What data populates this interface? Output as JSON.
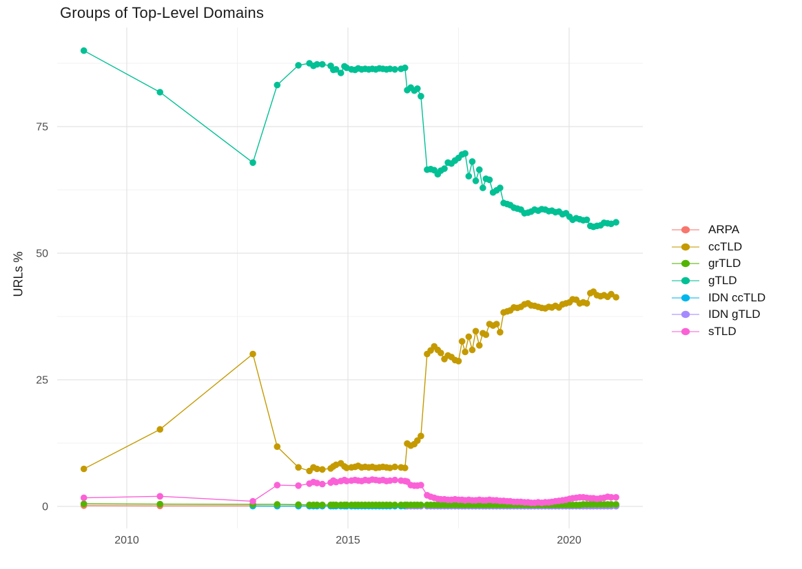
{
  "chart": {
    "title": "Groups of Top-Level Domains",
    "y_axis": {
      "title": "URLs %",
      "ticks": [
        0,
        25,
        50,
        75
      ],
      "minor_ticks": [
        12.5,
        37.5,
        62.5,
        87.5
      ],
      "range": [
        -4.5,
        94.5
      ]
    },
    "x_axis": {
      "title": "",
      "ticks": [
        2010,
        2015,
        2020
      ],
      "minor_ticks": [
        2012.5,
        2017.5
      ],
      "range": [
        2008.43,
        2021.67
      ]
    }
  },
  "chart_data": {
    "type": "line",
    "title": "Groups of Top-Level Domains",
    "xlabel": "",
    "ylabel": "URLs %",
    "grid": true,
    "legend_position": "right",
    "x_tick_labels": [
      "2010",
      "2015",
      "2020"
    ],
    "y_tick_labels": [
      "0",
      "25",
      "50",
      "75"
    ],
    "x": [
      2009.03,
      2010.75,
      2012.85,
      2013.4,
      2013.88,
      2014.13,
      2014.22,
      2014.3,
      2014.42,
      2014.61,
      2014.67,
      2014.73,
      2014.84,
      2014.92,
      2014.97,
      2015.08,
      2015.16,
      2015.23,
      2015.31,
      2015.39,
      2015.47,
      2015.55,
      2015.63,
      2015.71,
      2015.79,
      2015.87,
      2015.95,
      2016.06,
      2016.2,
      2016.29,
      2016.34,
      2016.42,
      2016.5,
      2016.57,
      2016.65,
      2016.79,
      2016.87,
      2016.95,
      2017.03,
      2017.1,
      2017.18,
      2017.26,
      2017.34,
      2017.42,
      2017.5,
      2017.58,
      2017.65,
      2017.73,
      2017.81,
      2017.89,
      2017.97,
      2018.05,
      2018.12,
      2018.2,
      2018.28,
      2018.36,
      2018.44,
      2018.52,
      2018.6,
      2018.67,
      2018.75,
      2018.83,
      2018.91,
      2018.99,
      2019.07,
      2019.14,
      2019.22,
      2019.3,
      2019.38,
      2019.46,
      2019.54,
      2019.61,
      2019.69,
      2019.77,
      2019.85,
      2019.93,
      2020.01,
      2020.08,
      2020.16,
      2020.24,
      2020.32,
      2020.4,
      2020.48,
      2020.55,
      2020.63,
      2020.71,
      2020.79,
      2020.87,
      2020.95,
      2021.06
    ],
    "series": [
      {
        "name": "ARPA",
        "color": "#F8766D",
        "values": [
          0.15,
          0.1,
          0.1,
          0.05,
          0.05,
          0.05,
          0.05,
          0.05,
          0.05,
          0.05,
          0.05,
          0.05,
          0.05,
          0.05,
          0.05,
          0.05,
          0.05,
          0.05,
          0.05,
          0.05,
          0.05,
          0.05,
          0.05,
          0.05,
          0.05,
          0.05,
          0.05,
          0.05,
          0.05,
          0.05,
          0.05,
          0.05,
          0.05,
          0.05,
          0.05,
          0.05,
          0.05,
          0.05,
          0.05,
          0.05,
          0.05,
          0.05,
          0.05,
          0.05,
          0.05,
          0.05,
          0.05,
          0.05,
          0.05,
          0.05,
          0.05,
          0.05,
          0.05,
          0.05,
          0.05,
          0.05,
          0.05,
          0.05,
          0.05,
          0.05,
          0.05,
          0.05,
          0.05,
          0.05,
          0.05,
          0.05,
          0.05,
          0.05,
          0.05,
          0.05,
          0.05,
          0.05,
          0.05,
          0.05,
          0.05,
          0.05,
          0.05,
          0.05,
          0.05,
          0.05,
          0.05,
          0.05,
          0.05,
          0.05,
          0.05,
          0.05,
          0.05,
          0.05,
          0.05,
          0.05
        ]
      },
      {
        "name": "ccTLD",
        "color": "#C49A00",
        "values": [
          7.4,
          15.2,
          30.1,
          11.8,
          7.7,
          7.0,
          7.7,
          7.4,
          7.3,
          7.5,
          7.9,
          8.2,
          8.5,
          7.9,
          7.6,
          7.7,
          7.8,
          8.0,
          7.7,
          7.8,
          7.7,
          7.8,
          7.6,
          7.7,
          7.8,
          7.7,
          7.6,
          7.8,
          7.7,
          7.6,
          12.4,
          12.0,
          12.3,
          13.0,
          13.9,
          30.1,
          30.8,
          31.6,
          30.9,
          30.3,
          29.1,
          29.8,
          29.5,
          28.9,
          28.7,
          32.6,
          30.5,
          33.5,
          30.9,
          34.6,
          31.8,
          34.2,
          33.9,
          36.0,
          35.7,
          36.0,
          34.4,
          38.3,
          38.5,
          38.7,
          39.3,
          39.2,
          39.4,
          39.9,
          40.1,
          39.7,
          39.6,
          39.4,
          39.2,
          39.1,
          39.4,
          39.3,
          39.6,
          39.3,
          39.9,
          40.1,
          40.3,
          40.9,
          40.8,
          40.1,
          40.3,
          40.1,
          42.1,
          42.4,
          41.7,
          41.5,
          41.7,
          41.4,
          41.9,
          41.3
        ]
      },
      {
        "name": "grTLD",
        "color": "#53B400",
        "values": [
          0.5,
          0.45,
          0.4,
          0.4,
          0.35,
          0.3,
          0.3,
          0.3,
          0.3,
          0.3,
          0.3,
          0.3,
          0.3,
          0.3,
          0.3,
          0.3,
          0.3,
          0.3,
          0.3,
          0.3,
          0.3,
          0.3,
          0.3,
          0.3,
          0.3,
          0.3,
          0.3,
          0.3,
          0.3,
          0.3,
          0.3,
          0.3,
          0.3,
          0.3,
          0.3,
          0.3,
          0.3,
          0.3,
          0.3,
          0.3,
          0.3,
          0.3,
          0.3,
          0.3,
          0.3,
          0.3,
          0.3,
          0.3,
          0.3,
          0.3,
          0.3,
          0.3,
          0.3,
          0.3,
          0.3,
          0.3,
          0.3,
          0.3,
          0.3,
          0.3,
          0.3,
          0.3,
          0.3,
          0.3,
          0.3,
          0.3,
          0.3,
          0.3,
          0.3,
          0.3,
          0.3,
          0.3,
          0.3,
          0.3,
          0.3,
          0.3,
          0.3,
          0.3,
          0.3,
          0.3,
          0.4,
          0.4,
          0.4,
          0.4,
          0.4,
          0.4,
          0.4,
          0.4,
          0.4,
          0.4
        ]
      },
      {
        "name": "gTLD",
        "color": "#00C094",
        "values": [
          90.0,
          81.8,
          67.9,
          83.2,
          87.1,
          87.5,
          87.0,
          87.3,
          87.3,
          87.0,
          86.2,
          86.3,
          85.6,
          86.9,
          86.6,
          86.3,
          86.2,
          86.5,
          86.3,
          86.4,
          86.3,
          86.4,
          86.3,
          86.5,
          86.4,
          86.3,
          86.4,
          86.3,
          86.4,
          86.6,
          82.2,
          82.7,
          82.1,
          82.5,
          81.0,
          66.5,
          66.6,
          66.4,
          65.6,
          66.3,
          66.7,
          67.9,
          67.7,
          68.3,
          68.8,
          69.5,
          69.7,
          65.2,
          68.1,
          64.3,
          66.5,
          62.9,
          64.7,
          64.5,
          62.0,
          62.4,
          62.9,
          59.9,
          59.7,
          59.5,
          59.0,
          58.8,
          58.6,
          57.9,
          58.0,
          58.2,
          58.6,
          58.4,
          58.7,
          58.6,
          58.3,
          58.4,
          58.1,
          58.2,
          57.7,
          57.9,
          57.2,
          56.6,
          56.9,
          56.7,
          56.5,
          56.6,
          55.4,
          55.2,
          55.4,
          55.5,
          56.0,
          55.9,
          55.8,
          56.1
        ]
      },
      {
        "name": "IDN ccTLD",
        "color": "#00B6EB",
        "values": [
          null,
          null,
          0.05,
          0.05,
          0.05,
          0.05,
          0.05,
          0.05,
          0.05,
          0.05,
          0.05,
          0.05,
          0.05,
          0.05,
          0.05,
          0.05,
          0.05,
          0.05,
          0.05,
          0.05,
          0.05,
          0.05,
          0.05,
          0.05,
          0.05,
          0.05,
          0.05,
          0.05,
          0.05,
          0.05,
          0.05,
          0.05,
          0.05,
          0.05,
          0.05,
          0.05,
          0.05,
          0.05,
          0.05,
          0.05,
          0.05,
          0.05,
          0.05,
          0.05,
          0.05,
          0.05,
          0.05,
          0.05,
          0.05,
          0.05,
          0.05,
          0.05,
          0.05,
          0.05,
          0.05,
          0.05,
          0.05,
          0.05,
          0.05,
          0.05,
          0.05,
          0.05,
          0.05,
          0.05,
          0.05,
          0.05,
          0.05,
          0.05,
          0.05,
          0.05,
          0.05,
          0.05,
          0.05,
          0.05,
          0.05,
          0.05,
          0.05,
          0.05,
          0.05,
          0.05,
          0.05,
          0.05,
          0.05,
          0.05,
          0.05,
          0.05,
          0.05,
          0.05,
          0.05,
          0.05
        ]
      },
      {
        "name": "IDN gTLD",
        "color": "#A58AFF",
        "values": [
          null,
          null,
          null,
          null,
          null,
          null,
          null,
          null,
          null,
          null,
          null,
          null,
          null,
          null,
          null,
          null,
          null,
          null,
          null,
          null,
          null,
          null,
          null,
          null,
          null,
          null,
          null,
          null,
          null,
          null,
          0.05,
          0.05,
          0.05,
          0.05,
          0.05,
          0.05,
          0.05,
          0.05,
          0.05,
          0.05,
          0.05,
          0.05,
          0.05,
          0.05,
          0.05,
          0.05,
          0.05,
          0.05,
          0.05,
          0.05,
          0.05,
          0.05,
          0.05,
          0.05,
          0.05,
          0.05,
          0.05,
          0.05,
          0.05,
          0.05,
          0.05,
          0.05,
          0.05,
          0.05,
          0.05,
          0.05,
          0.05,
          0.05,
          0.05,
          0.05,
          0.05,
          0.05,
          0.05,
          0.05,
          0.05,
          0.05,
          0.05,
          0.05,
          0.05,
          0.05,
          0.05,
          0.05,
          0.05,
          0.05,
          0.05,
          0.05,
          0.05,
          0.05,
          0.05,
          0.05
        ]
      },
      {
        "name": "sTLD",
        "color": "#FB61D7",
        "values": [
          1.7,
          2.0,
          1.0,
          4.2,
          4.1,
          4.5,
          4.8,
          4.6,
          4.4,
          4.7,
          5.1,
          4.8,
          5.0,
          5.2,
          5.0,
          5.1,
          5.2,
          5.1,
          5.0,
          5.2,
          5.1,
          5.3,
          5.2,
          5.1,
          5.2,
          5.0,
          5.1,
          5.2,
          5.1,
          5.0,
          4.9,
          4.2,
          4.1,
          4.1,
          4.2,
          2.2,
          1.9,
          1.7,
          1.5,
          1.4,
          1.4,
          1.3,
          1.3,
          1.4,
          1.3,
          1.3,
          1.2,
          1.3,
          1.2,
          1.2,
          1.3,
          1.2,
          1.2,
          1.3,
          1.2,
          1.2,
          1.1,
          1.1,
          1.0,
          1.0,
          0.9,
          0.9,
          0.9,
          0.8,
          0.8,
          0.7,
          0.7,
          0.8,
          0.7,
          0.8,
          0.8,
          0.9,
          1.0,
          1.1,
          1.2,
          1.3,
          1.5,
          1.6,
          1.7,
          1.8,
          1.8,
          1.7,
          1.6,
          1.6,
          1.5,
          1.6,
          1.7,
          1.9,
          1.8,
          1.8
        ]
      }
    ]
  }
}
